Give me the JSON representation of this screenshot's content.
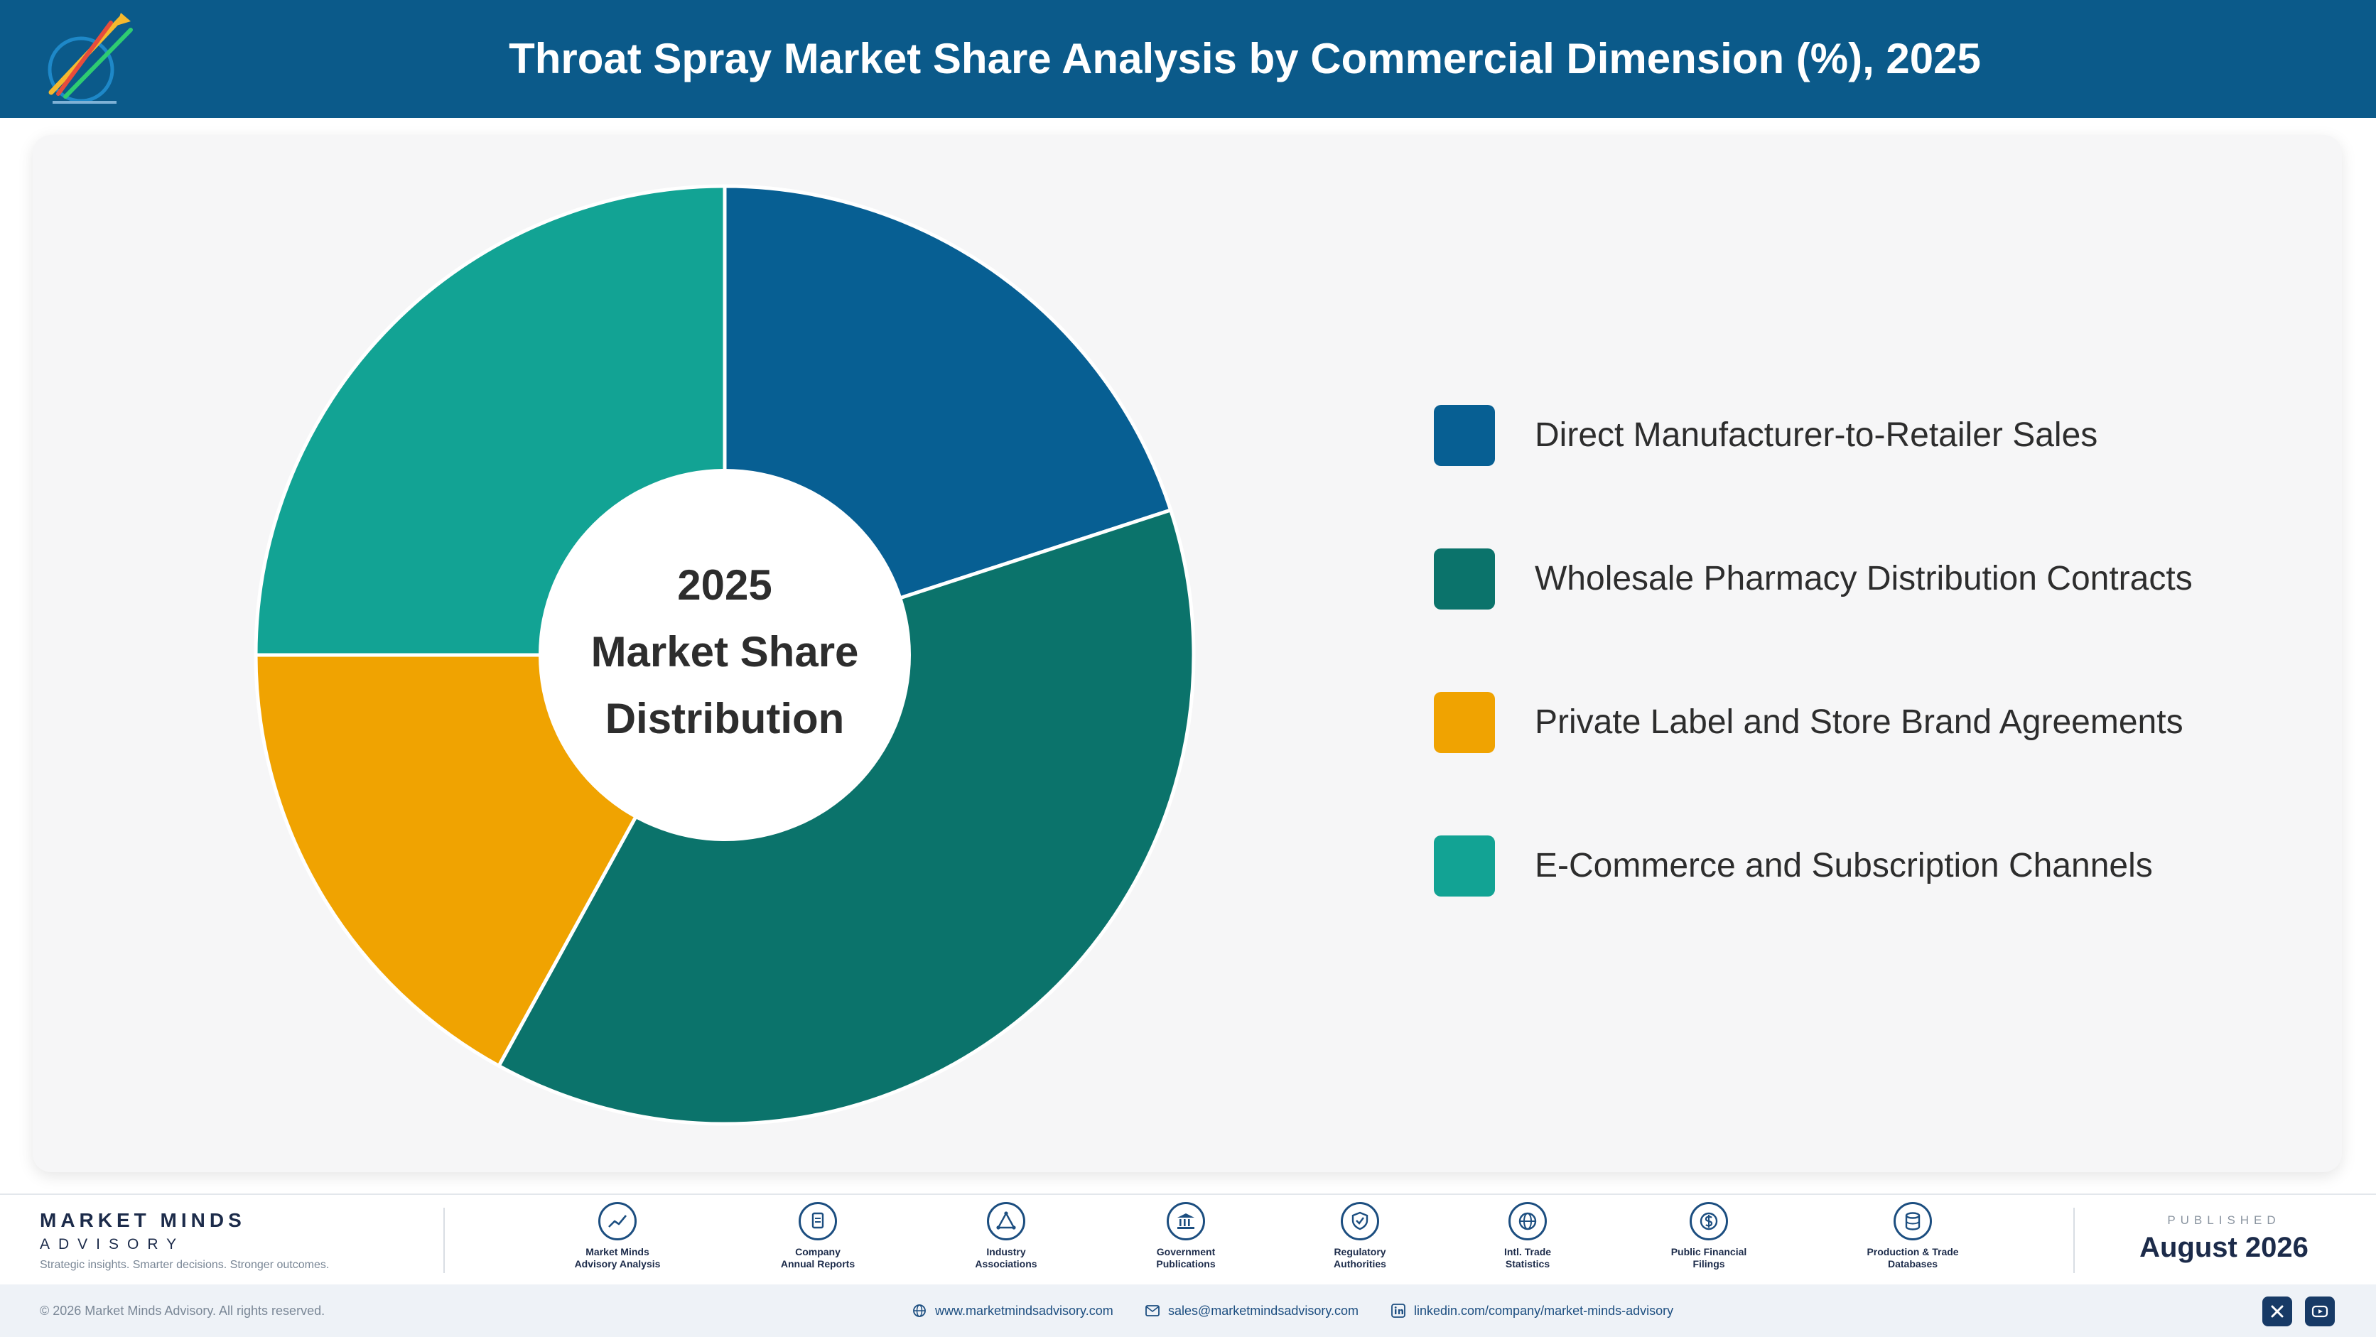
{
  "header": {
    "title": "Throat Spray Market Share Analysis by Commercial Dimension (%), 2025"
  },
  "chart_data": {
    "type": "pie",
    "variant": "donut",
    "center_label": [
      "2025",
      "Market Share",
      "Distribution"
    ],
    "legend_position": "right",
    "categories": [
      "Direct Manufacturer-to-Retailer Sales",
      "Wholesale Pharmacy Distribution Contracts",
      "Private Label and Store Brand Agreements",
      "E-Commerce and Subscription Channels"
    ],
    "values": [
      20,
      38,
      17,
      25
    ],
    "colors": [
      "#075f93",
      "#0b736b",
      "#f0a301",
      "#12a394"
    ]
  },
  "footer": {
    "brand_name": "MARKET MINDS",
    "brand_sub": "ADVISORY",
    "tagline": "Strategic insights. Smarter decisions. Stronger outcomes.",
    "sources": [
      {
        "icon": "chart-line-icon",
        "label": "Market Minds\nAdvisory Analysis"
      },
      {
        "icon": "document-icon",
        "label": "Company\nAnnual Reports"
      },
      {
        "icon": "network-icon",
        "label": "Industry\nAssociations"
      },
      {
        "icon": "government-building-icon",
        "label": "Government\nPublications"
      },
      {
        "icon": "shield-check-icon",
        "label": "Regulatory\nAuthorities"
      },
      {
        "icon": "globe-icon",
        "label": "Intl. Trade\nStatistics"
      },
      {
        "icon": "dollar-coin-icon",
        "label": "Public Financial\nFilings"
      },
      {
        "icon": "database-icon",
        "label": "Production & Trade\nDatabases"
      }
    ],
    "published_label": "PUBLISHED",
    "published_date": "August 2026"
  },
  "bottom_bar": {
    "copyright": "© 2026 Market Minds Advisory. All rights reserved.",
    "website": "www.marketmindsadvisory.com",
    "email": "sales@marketmindsadvisory.com",
    "linkedin": "linkedin.com/company/market-minds-advisory"
  }
}
